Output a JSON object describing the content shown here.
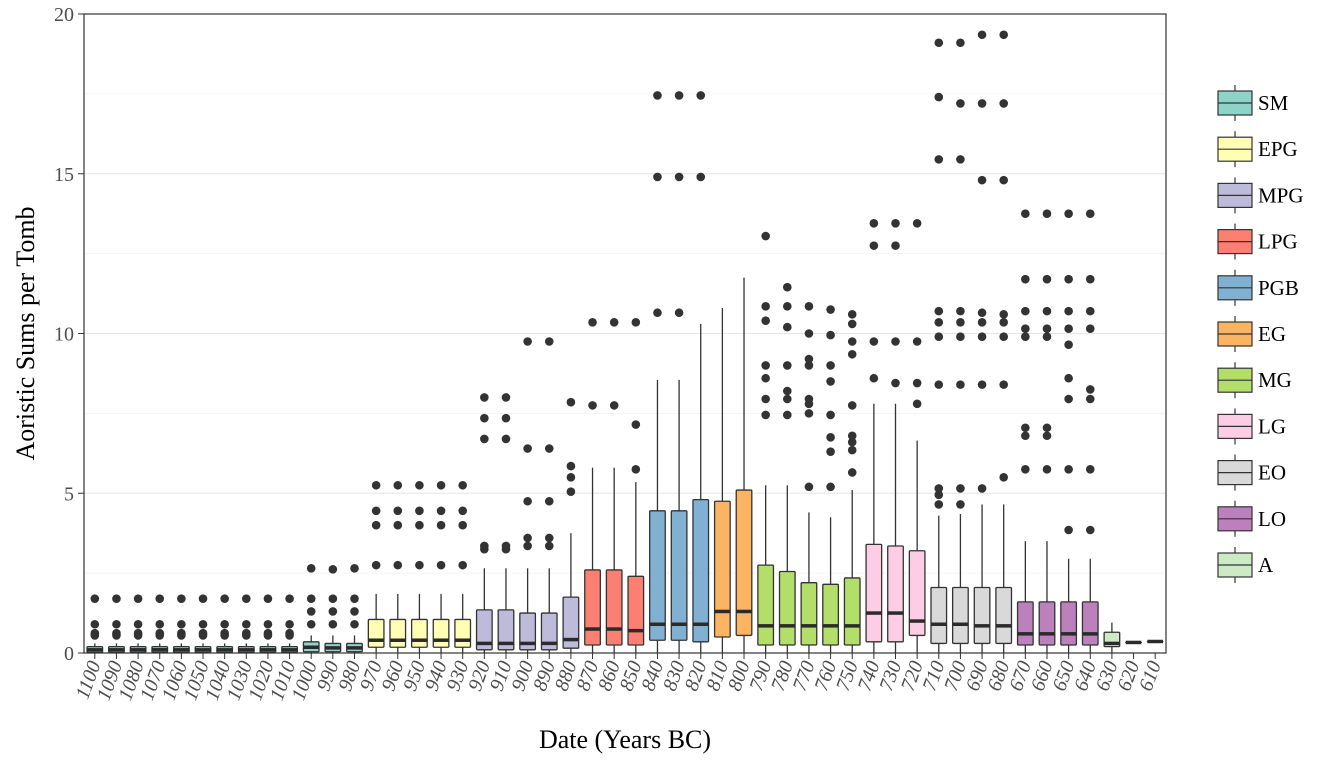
{
  "chart_data": {
    "type": "box",
    "title": "",
    "xlabel": "Date (Years BC)",
    "ylabel": "Aoristic Sums per Tomb",
    "ylim": [
      0,
      20
    ],
    "yticks": [
      0,
      5,
      10,
      15,
      20
    ],
    "grid": true,
    "legend_position": "right",
    "periods": [
      {
        "name": "SM",
        "color": "#8dd3c7"
      },
      {
        "name": "EPG",
        "color": "#ffffb3"
      },
      {
        "name": "MPG",
        "color": "#bebada"
      },
      {
        "name": "LPG",
        "color": "#fb8072"
      },
      {
        "name": "PGB",
        "color": "#80b1d3"
      },
      {
        "name": "EG",
        "color": "#fdb462"
      },
      {
        "name": "MG",
        "color": "#b3de69"
      },
      {
        "name": "LG",
        "color": "#fccde5"
      },
      {
        "name": "EO",
        "color": "#d9d9d9"
      },
      {
        "name": "LO",
        "color": "#bc80bd"
      },
      {
        "name": "A",
        "color": "#ccebc5"
      }
    ],
    "boxes": [
      {
        "date": "1100",
        "period": "SM",
        "q1": 0.02,
        "median": 0.1,
        "q3": 0.2,
        "whisker_low": 0.0,
        "whisker_high": 0.3,
        "outliers": [
          0.55,
          0.62,
          0.9,
          1.7
        ]
      },
      {
        "date": "1090",
        "period": "SM",
        "q1": 0.02,
        "median": 0.1,
        "q3": 0.2,
        "whisker_low": 0.0,
        "whisker_high": 0.3,
        "outliers": [
          0.55,
          0.62,
          0.9,
          1.7
        ]
      },
      {
        "date": "1080",
        "period": "SM",
        "q1": 0.02,
        "median": 0.1,
        "q3": 0.2,
        "whisker_low": 0.0,
        "whisker_high": 0.3,
        "outliers": [
          0.55,
          0.62,
          0.9,
          1.7
        ]
      },
      {
        "date": "1070",
        "period": "SM",
        "q1": 0.02,
        "median": 0.1,
        "q3": 0.2,
        "whisker_low": 0.0,
        "whisker_high": 0.3,
        "outliers": [
          0.55,
          0.62,
          0.9,
          1.7
        ]
      },
      {
        "date": "1060",
        "period": "SM",
        "q1": 0.02,
        "median": 0.1,
        "q3": 0.2,
        "whisker_low": 0.0,
        "whisker_high": 0.3,
        "outliers": [
          0.55,
          0.62,
          0.9,
          1.7
        ]
      },
      {
        "date": "1050",
        "period": "SM",
        "q1": 0.02,
        "median": 0.1,
        "q3": 0.2,
        "whisker_low": 0.0,
        "whisker_high": 0.3,
        "outliers": [
          0.55,
          0.62,
          0.9,
          1.7
        ]
      },
      {
        "date": "1040",
        "period": "SM",
        "q1": 0.02,
        "median": 0.1,
        "q3": 0.2,
        "whisker_low": 0.0,
        "whisker_high": 0.3,
        "outliers": [
          0.55,
          0.62,
          0.9,
          1.7
        ]
      },
      {
        "date": "1030",
        "period": "SM",
        "q1": 0.02,
        "median": 0.1,
        "q3": 0.2,
        "whisker_low": 0.0,
        "whisker_high": 0.3,
        "outliers": [
          0.55,
          0.62,
          0.9,
          1.7
        ]
      },
      {
        "date": "1020",
        "period": "SM",
        "q1": 0.02,
        "median": 0.1,
        "q3": 0.2,
        "whisker_low": 0.0,
        "whisker_high": 0.3,
        "outliers": [
          0.55,
          0.62,
          0.9,
          1.7
        ]
      },
      {
        "date": "1010",
        "period": "SM",
        "q1": 0.02,
        "median": 0.1,
        "q3": 0.2,
        "whisker_low": 0.0,
        "whisker_high": 0.3,
        "outliers": [
          0.55,
          0.62,
          0.9,
          1.7
        ]
      },
      {
        "date": "1000",
        "period": "SM",
        "q1": 0.04,
        "median": 0.18,
        "q3": 0.35,
        "whisker_low": 0.0,
        "whisker_high": 0.55,
        "outliers": [
          0.9,
          1.3,
          1.7,
          2.65
        ]
      },
      {
        "date": "990",
        "period": "SM",
        "q1": 0.04,
        "median": 0.16,
        "q3": 0.3,
        "whisker_low": 0.0,
        "whisker_high": 0.55,
        "outliers": [
          0.9,
          1.3,
          1.7,
          2.62
        ]
      },
      {
        "date": "980",
        "period": "SM",
        "q1": 0.04,
        "median": 0.16,
        "q3": 0.3,
        "whisker_low": 0.0,
        "whisker_high": 0.55,
        "outliers": [
          0.9,
          1.3,
          1.7,
          2.65
        ]
      },
      {
        "date": "970",
        "period": "EPG",
        "q1": 0.18,
        "median": 0.4,
        "q3": 1.05,
        "whisker_low": 0.0,
        "whisker_high": 1.85,
        "outliers": [
          2.75,
          4.0,
          4.45,
          5.25
        ]
      },
      {
        "date": "960",
        "period": "EPG",
        "q1": 0.18,
        "median": 0.4,
        "q3": 1.05,
        "whisker_low": 0.0,
        "whisker_high": 1.85,
        "outliers": [
          2.75,
          4.0,
          4.45,
          5.25
        ]
      },
      {
        "date": "950",
        "period": "EPG",
        "q1": 0.18,
        "median": 0.4,
        "q3": 1.05,
        "whisker_low": 0.0,
        "whisker_high": 1.85,
        "outliers": [
          2.75,
          4.0,
          4.45,
          5.25
        ]
      },
      {
        "date": "940",
        "period": "EPG",
        "q1": 0.18,
        "median": 0.4,
        "q3": 1.05,
        "whisker_low": 0.0,
        "whisker_high": 1.85,
        "outliers": [
          2.75,
          4.0,
          4.45,
          5.25
        ]
      },
      {
        "date": "930",
        "period": "EPG",
        "q1": 0.18,
        "median": 0.4,
        "q3": 1.05,
        "whisker_low": 0.0,
        "whisker_high": 1.85,
        "outliers": [
          2.75,
          4.0,
          4.45,
          5.25
        ]
      },
      {
        "date": "920",
        "period": "MPG",
        "q1": 0.1,
        "median": 0.3,
        "q3": 1.35,
        "whisker_low": 0.0,
        "whisker_high": 2.65,
        "outliers": [
          3.25,
          3.35,
          6.7,
          7.35,
          8.0
        ]
      },
      {
        "date": "910",
        "period": "MPG",
        "q1": 0.1,
        "median": 0.3,
        "q3": 1.35,
        "whisker_low": 0.0,
        "whisker_high": 2.65,
        "outliers": [
          3.25,
          3.35,
          6.7,
          7.35,
          8.0
        ]
      },
      {
        "date": "900",
        "period": "MPG",
        "q1": 0.1,
        "median": 0.3,
        "q3": 1.25,
        "whisker_low": 0.0,
        "whisker_high": 2.65,
        "outliers": [
          3.35,
          3.6,
          4.75,
          6.4,
          9.75
        ]
      },
      {
        "date": "890",
        "period": "MPG",
        "q1": 0.1,
        "median": 0.3,
        "q3": 1.25,
        "whisker_low": 0.0,
        "whisker_high": 2.65,
        "outliers": [
          3.35,
          3.6,
          4.75,
          6.4,
          9.75
        ]
      },
      {
        "date": "880",
        "period": "MPG",
        "q1": 0.15,
        "median": 0.42,
        "q3": 1.75,
        "whisker_low": 0.0,
        "whisker_high": 3.75,
        "outliers": [
          5.05,
          5.5,
          5.85,
          7.85
        ]
      },
      {
        "date": "870",
        "period": "LPG",
        "q1": 0.25,
        "median": 0.75,
        "q3": 2.6,
        "whisker_low": 0.0,
        "whisker_high": 5.8,
        "outliers": [
          7.75,
          10.35
        ]
      },
      {
        "date": "860",
        "period": "LPG",
        "q1": 0.25,
        "median": 0.75,
        "q3": 2.6,
        "whisker_low": 0.0,
        "whisker_high": 5.8,
        "outliers": [
          7.75,
          10.35
        ]
      },
      {
        "date": "850",
        "period": "LPG",
        "q1": 0.25,
        "median": 0.7,
        "q3": 2.4,
        "whisker_low": 0.0,
        "whisker_high": 5.35,
        "outliers": [
          5.75,
          7.15,
          10.35
        ]
      },
      {
        "date": "840",
        "period": "PGB",
        "q1": 0.4,
        "median": 0.9,
        "q3": 4.45,
        "whisker_low": 0.0,
        "whisker_high": 8.55,
        "outliers": [
          10.65,
          14.9,
          17.45
        ]
      },
      {
        "date": "830",
        "period": "PGB",
        "q1": 0.4,
        "median": 0.9,
        "q3": 4.45,
        "whisker_low": 0.0,
        "whisker_high": 8.55,
        "outliers": [
          10.65,
          14.9,
          17.45
        ]
      },
      {
        "date": "820",
        "period": "PGB",
        "q1": 0.35,
        "median": 0.9,
        "q3": 4.8,
        "whisker_low": 0.0,
        "whisker_high": 10.3,
        "outliers": [
          14.9,
          17.45
        ]
      },
      {
        "date": "810",
        "period": "EG",
        "q1": 0.5,
        "median": 1.3,
        "q3": 4.75,
        "whisker_low": 0.0,
        "whisker_high": 10.8,
        "outliers": []
      },
      {
        "date": "800",
        "period": "EG",
        "q1": 0.55,
        "median": 1.3,
        "q3": 5.1,
        "whisker_low": 0.0,
        "whisker_high": 11.75,
        "outliers": []
      },
      {
        "date": "790",
        "period": "MG",
        "q1": 0.25,
        "median": 0.85,
        "q3": 2.75,
        "whisker_low": 0.0,
        "whisker_high": 5.25,
        "outliers": [
          7.45,
          7.95,
          8.6,
          9.0,
          10.4,
          10.85,
          13.05
        ]
      },
      {
        "date": "780",
        "period": "MG",
        "q1": 0.25,
        "median": 0.85,
        "q3": 2.55,
        "whisker_low": 0.0,
        "whisker_high": 5.25,
        "outliers": [
          7.45,
          7.95,
          8.2,
          9.0,
          10.2,
          10.85,
          11.45
        ]
      },
      {
        "date": "770",
        "period": "MG",
        "q1": 0.25,
        "median": 0.85,
        "q3": 2.2,
        "whisker_low": 0.0,
        "whisker_high": 4.4,
        "outliers": [
          5.2,
          7.5,
          7.8,
          7.95,
          9.0,
          9.2,
          10.0,
          10.85
        ]
      },
      {
        "date": "760",
        "period": "MG",
        "q1": 0.25,
        "median": 0.85,
        "q3": 2.15,
        "whisker_low": 0.0,
        "whisker_high": 4.25,
        "outliers": [
          5.2,
          6.3,
          6.75,
          7.45,
          8.5,
          9.0,
          9.95,
          10.75
        ]
      },
      {
        "date": "750",
        "period": "MG",
        "q1": 0.25,
        "median": 0.85,
        "q3": 2.35,
        "whisker_low": 0.0,
        "whisker_high": 5.1,
        "outliers": [
          5.65,
          6.35,
          6.6,
          6.8,
          7.75,
          9.35,
          9.75,
          10.3,
          10.6
        ]
      },
      {
        "date": "740",
        "period": "LG",
        "q1": 0.35,
        "median": 1.25,
        "q3": 3.4,
        "whisker_low": 0.0,
        "whisker_high": 7.8,
        "outliers": [
          8.6,
          9.75,
          12.75,
          13.45
        ]
      },
      {
        "date": "730",
        "period": "LG",
        "q1": 0.35,
        "median": 1.25,
        "q3": 3.35,
        "whisker_low": 0.0,
        "whisker_high": 7.8,
        "outliers": [
          8.45,
          9.75,
          12.75,
          13.45
        ]
      },
      {
        "date": "720",
        "period": "LG",
        "q1": 0.55,
        "median": 1.0,
        "q3": 3.2,
        "whisker_low": 0.0,
        "whisker_high": 6.65,
        "outliers": [
          7.8,
          8.45,
          9.75,
          13.45
        ]
      },
      {
        "date": "710",
        "period": "EO",
        "q1": 0.3,
        "median": 0.9,
        "q3": 2.05,
        "whisker_low": 0.0,
        "whisker_high": 4.3,
        "outliers": [
          4.65,
          4.95,
          5.15,
          8.4,
          9.9,
          10.35,
          10.7,
          15.45,
          17.4,
          19.1
        ]
      },
      {
        "date": "700",
        "period": "EO",
        "q1": 0.3,
        "median": 0.9,
        "q3": 2.05,
        "whisker_low": 0.0,
        "whisker_high": 4.35,
        "outliers": [
          4.65,
          5.15,
          8.4,
          9.9,
          10.35,
          10.7,
          15.45,
          17.2,
          19.1
        ]
      },
      {
        "date": "690",
        "period": "EO",
        "q1": 0.3,
        "median": 0.85,
        "q3": 2.05,
        "whisker_low": 0.0,
        "whisker_high": 4.65,
        "outliers": [
          5.15,
          8.4,
          9.9,
          10.35,
          10.65,
          14.8,
          17.2,
          19.35
        ]
      },
      {
        "date": "680",
        "period": "EO",
        "q1": 0.3,
        "median": 0.85,
        "q3": 2.05,
        "whisker_low": 0.0,
        "whisker_high": 4.65,
        "outliers": [
          5.5,
          8.4,
          9.9,
          10.35,
          10.6,
          14.8,
          17.2,
          19.35
        ]
      },
      {
        "date": "670",
        "period": "LO",
        "q1": 0.25,
        "median": 0.6,
        "q3": 1.6,
        "whisker_low": 0.0,
        "whisker_high": 3.5,
        "outliers": [
          5.75,
          6.8,
          7.05,
          9.9,
          10.15,
          10.7,
          11.7,
          13.75
        ]
      },
      {
        "date": "660",
        "period": "LO",
        "q1": 0.25,
        "median": 0.6,
        "q3": 1.6,
        "whisker_low": 0.0,
        "whisker_high": 3.5,
        "outliers": [
          5.75,
          6.8,
          7.05,
          9.9,
          10.15,
          10.7,
          11.7,
          13.75
        ]
      },
      {
        "date": "650",
        "period": "LO",
        "q1": 0.25,
        "median": 0.6,
        "q3": 1.6,
        "whisker_low": 0.0,
        "whisker_high": 2.95,
        "outliers": [
          3.85,
          5.75,
          7.95,
          8.6,
          9.65,
          10.15,
          10.7,
          11.7,
          13.75
        ]
      },
      {
        "date": "640",
        "period": "LO",
        "q1": 0.25,
        "median": 0.6,
        "q3": 1.6,
        "whisker_low": 0.0,
        "whisker_high": 2.95,
        "outliers": [
          3.85,
          5.75,
          7.95,
          8.25,
          10.15,
          10.7,
          11.7,
          13.75
        ]
      },
      {
        "date": "630",
        "period": "A",
        "q1": 0.2,
        "median": 0.3,
        "q3": 0.65,
        "whisker_low": 0.0,
        "whisker_high": 0.95,
        "outliers": []
      },
      {
        "date": "620",
        "period": "A",
        "q1": 0.33,
        "median": 0.33,
        "q3": 0.33,
        "whisker_low": 0.33,
        "whisker_high": 0.33,
        "outliers": []
      },
      {
        "date": "610",
        "period": "A",
        "q1": 0.36,
        "median": 0.36,
        "q3": 0.36,
        "whisker_low": 0.36,
        "whisker_high": 0.36,
        "outliers": []
      }
    ]
  }
}
